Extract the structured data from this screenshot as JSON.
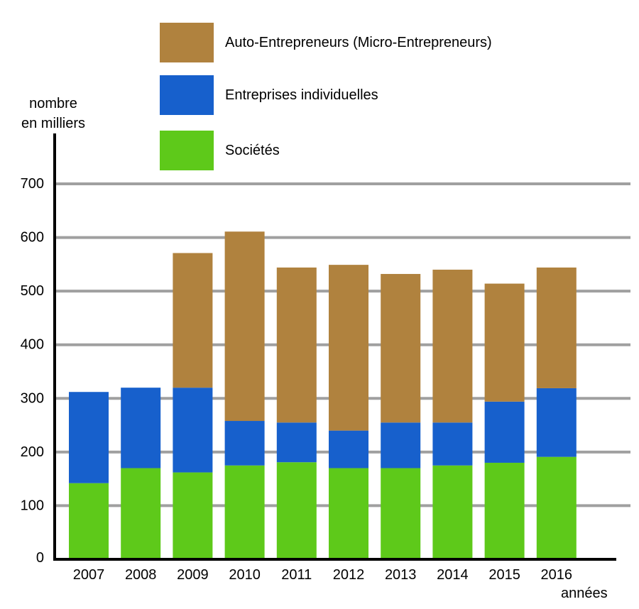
{
  "chart_data": {
    "type": "bar",
    "stacked": true,
    "ylabel_line1": "nombre",
    "ylabel_line2": "en milliers",
    "xlabel": "années",
    "ylim": [
      0,
      700
    ],
    "yticks": [
      0,
      100,
      200,
      300,
      400,
      500,
      600,
      700
    ],
    "grid": true,
    "legend_position": "top",
    "categories": [
      "2007",
      "2008",
      "2009",
      "2010",
      "2011",
      "2012",
      "2013",
      "2014",
      "2015",
      "2016"
    ],
    "series": [
      {
        "name": "Sociétés",
        "color": "#5ec91a",
        "values": [
          142,
          170,
          162,
          175,
          181,
          170,
          170,
          175,
          180,
          191
        ]
      },
      {
        "name": "Entreprises individuelles",
        "color": "#1760cc",
        "values": [
          170,
          150,
          158,
          83,
          74,
          70,
          85,
          80,
          114,
          128
        ]
      },
      {
        "name": "Auto-Entrepreneurs (Micro-Entrepreneurs)",
        "color": "#b0823e",
        "values": [
          0,
          0,
          251,
          353,
          289,
          309,
          277,
          285,
          220,
          225
        ]
      }
    ]
  }
}
